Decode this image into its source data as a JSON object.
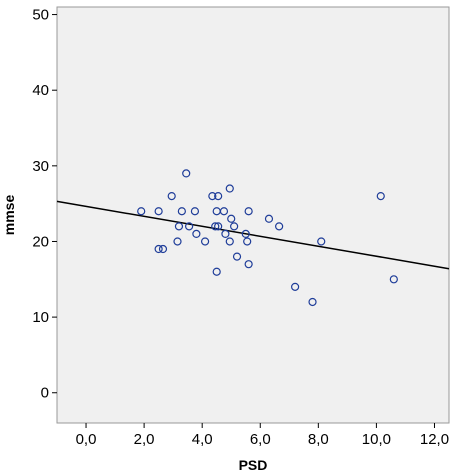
{
  "chart_data": {
    "type": "scatter",
    "title": "",
    "xlabel": "PSD",
    "ylabel": "mmse",
    "xlim": [
      -1.0,
      12.5
    ],
    "ylim": [
      -4.0,
      51.0
    ],
    "x_ticks": [
      0.0,
      2.0,
      4.0,
      6.0,
      8.0,
      10.0,
      12.0
    ],
    "x_tick_labels": [
      "0,0",
      "2,0",
      "4,0",
      "6,0",
      "8,0",
      "10,0",
      "12,0"
    ],
    "y_ticks": [
      0,
      10,
      20,
      30,
      40,
      50
    ],
    "y_tick_labels": [
      "0",
      "10",
      "20",
      "30",
      "40",
      "50"
    ],
    "grid": false,
    "legend": "none",
    "points": [
      {
        "x": 1.9,
        "y": 24
      },
      {
        "x": 2.5,
        "y": 24
      },
      {
        "x": 2.5,
        "y": 19
      },
      {
        "x": 2.65,
        "y": 19
      },
      {
        "x": 2.95,
        "y": 26
      },
      {
        "x": 3.15,
        "y": 20
      },
      {
        "x": 3.2,
        "y": 22
      },
      {
        "x": 3.3,
        "y": 24
      },
      {
        "x": 3.45,
        "y": 29
      },
      {
        "x": 3.55,
        "y": 22
      },
      {
        "x": 3.75,
        "y": 24
      },
      {
        "x": 3.8,
        "y": 21
      },
      {
        "x": 4.1,
        "y": 20
      },
      {
        "x": 4.35,
        "y": 26
      },
      {
        "x": 4.45,
        "y": 22
      },
      {
        "x": 4.5,
        "y": 24
      },
      {
        "x": 4.55,
        "y": 26
      },
      {
        "x": 4.55,
        "y": 22
      },
      {
        "x": 4.5,
        "y": 16
      },
      {
        "x": 4.75,
        "y": 24
      },
      {
        "x": 4.8,
        "y": 21
      },
      {
        "x": 4.95,
        "y": 27
      },
      {
        "x": 4.95,
        "y": 20
      },
      {
        "x": 5.0,
        "y": 23
      },
      {
        "x": 5.1,
        "y": 22
      },
      {
        "x": 5.2,
        "y": 18
      },
      {
        "x": 5.5,
        "y": 21
      },
      {
        "x": 5.55,
        "y": 20
      },
      {
        "x": 5.6,
        "y": 24
      },
      {
        "x": 5.6,
        "y": 17
      },
      {
        "x": 6.3,
        "y": 23
      },
      {
        "x": 6.65,
        "y": 22
      },
      {
        "x": 7.2,
        "y": 14
      },
      {
        "x": 7.8,
        "y": 12
      },
      {
        "x": 8.1,
        "y": 20
      },
      {
        "x": 10.15,
        "y": 26
      },
      {
        "x": 10.6,
        "y": 15
      }
    ],
    "fit_line": {
      "x": [
        -1.0,
        12.5
      ],
      "y": [
        25.3,
        16.4
      ]
    },
    "colors": {
      "point": "#1f3d99",
      "plot_bg": "#f0f0f0",
      "line": "#000000",
      "frame": "#999999"
    }
  }
}
